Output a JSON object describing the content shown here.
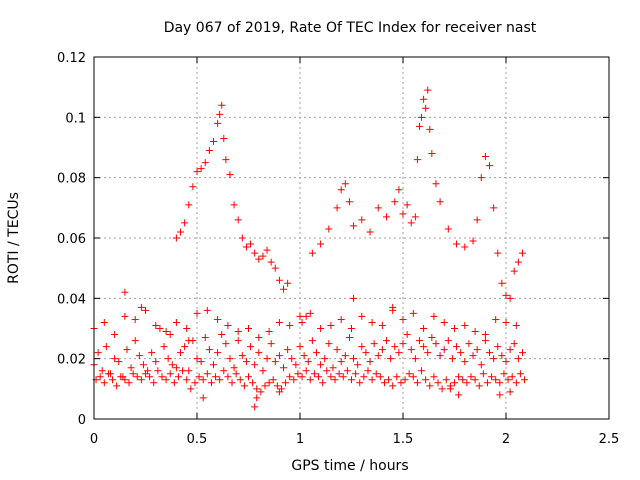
{
  "chart_data": {
    "type": "scatter",
    "title": "Day 067 of 2019, Rate Of TEC Index for receiver nast",
    "xlabel": "GPS time / hours",
    "ylabel": "ROTI / TECUs",
    "xlim": [
      0,
      2.5
    ],
    "ylim": [
      0,
      0.12
    ],
    "xticks": [
      0,
      0.5,
      1,
      1.5,
      2,
      2.5
    ],
    "xtick_labels": [
      "0",
      "0.5",
      "1",
      "1.5",
      "2",
      "2.5"
    ],
    "yticks": [
      0,
      0.02,
      0.04,
      0.06,
      0.08,
      0.1,
      0.12
    ],
    "ytick_labels": [
      "0",
      "0.02",
      "0.04",
      "0.06",
      "0.08",
      "0.1",
      "0.12"
    ],
    "grid": true,
    "marker": "+",
    "series_color": "#ff0000",
    "grid_color": "#a0a0a0",
    "series": [
      {
        "name": "ROTI",
        "x": [
          0.0,
          0.02,
          0.04,
          0.06,
          0.08,
          0.1,
          0.12,
          0.14,
          0.16,
          0.18,
          0.2,
          0.22,
          0.24,
          0.26,
          0.28,
          0.3,
          0.32,
          0.34,
          0.36,
          0.38,
          0.4,
          0.42,
          0.44,
          0.46,
          0.48,
          0.5,
          0.52,
          0.54,
          0.56,
          0.58,
          0.6,
          0.62,
          0.64,
          0.66,
          0.68,
          0.7,
          0.72,
          0.74,
          0.76,
          0.78,
          0.8,
          0.82,
          0.84,
          0.86,
          0.88,
          0.9,
          0.92,
          0.94,
          0.96,
          0.98,
          1.0,
          1.02,
          1.04,
          1.06,
          1.08,
          1.1,
          1.12,
          1.14,
          1.16,
          1.18,
          1.2,
          1.22,
          1.24,
          1.26,
          1.28,
          1.3,
          1.32,
          1.34,
          1.36,
          1.38,
          1.4,
          1.42,
          1.44,
          1.46,
          1.48,
          1.5,
          1.52,
          1.54,
          1.56,
          1.58,
          1.6,
          1.62,
          1.64,
          1.66,
          1.68,
          1.7,
          1.72,
          1.74,
          1.76,
          1.78,
          1.8,
          1.82,
          1.84,
          1.86,
          1.88,
          1.9,
          1.92,
          1.94,
          1.96,
          1.98,
          2.0,
          2.02,
          2.04,
          2.06,
          2.08,
          0.01,
          0.03,
          0.05,
          0.07,
          0.09,
          0.11,
          0.13,
          0.15,
          0.17,
          0.19,
          0.21,
          0.23,
          0.25,
          0.27,
          0.29,
          0.31,
          0.33,
          0.35,
          0.37,
          0.39,
          0.41,
          0.43,
          0.45,
          0.47,
          0.49,
          0.51,
          0.53,
          0.55,
          0.57,
          0.59,
          0.61,
          0.63,
          0.65,
          0.67,
          0.69,
          0.71,
          0.73,
          0.75,
          0.77,
          0.79,
          0.81,
          0.83,
          0.85,
          0.87,
          0.89,
          0.91,
          0.93,
          0.95,
          0.97,
          0.99,
          1.01,
          1.03,
          1.05,
          1.07,
          1.09,
          1.11,
          1.13,
          1.15,
          1.17,
          1.19,
          1.21,
          1.23,
          1.25,
          1.27,
          1.29,
          1.31,
          1.33,
          1.35,
          1.37,
          1.39,
          1.41,
          1.43,
          1.45,
          1.47,
          1.49,
          1.51,
          1.53,
          1.55,
          1.57,
          1.59,
          1.61,
          1.63,
          1.65,
          1.67,
          1.69,
          1.71,
          1.73,
          1.75,
          1.77,
          1.79,
          1.81,
          1.83,
          1.85,
          1.87,
          1.89,
          1.91,
          1.93,
          1.95,
          1.97,
          1.99,
          2.01,
          2.03,
          2.05,
          2.07,
          2.09,
          0.0,
          0.05,
          0.1,
          0.15,
          0.2,
          0.25,
          0.3,
          0.35,
          0.4,
          0.45,
          0.5,
          0.55,
          0.6,
          0.65,
          0.7,
          0.75,
          0.8,
          0.85,
          0.9,
          0.95,
          1.0,
          1.05,
          1.1,
          1.15,
          1.2,
          1.25,
          1.3,
          1.35,
          1.4,
          1.45,
          1.5,
          1.55,
          1.6,
          1.65,
          1.7,
          1.75,
          1.8,
          1.85,
          1.9,
          1.95,
          2.0,
          2.05,
          0.4,
          0.42,
          0.44,
          0.46,
          0.48,
          0.5,
          0.52,
          0.54,
          0.56,
          0.58,
          0.6,
          0.61,
          0.62,
          0.63,
          0.64,
          0.66,
          0.68,
          0.7,
          0.72,
          0.74,
          0.76,
          0.78,
          0.8,
          0.82,
          0.84,
          0.86,
          0.88,
          0.9,
          0.92,
          0.94,
          1.06,
          1.1,
          1.14,
          1.18,
          1.2,
          1.22,
          1.24,
          1.26,
          1.3,
          1.34,
          1.38,
          1.42,
          1.46,
          1.48,
          1.5,
          1.52,
          1.54,
          1.56,
          1.57,
          1.58,
          1.59,
          1.6,
          1.61,
          1.62,
          1.63,
          1.64,
          1.66,
          1.68,
          1.72,
          1.76,
          1.8,
          1.84,
          1.86,
          1.88,
          1.9,
          1.92,
          1.94,
          1.96,
          1.98,
          2.0,
          2.02,
          2.04,
          2.06,
          2.08,
          0.15,
          0.23,
          0.37,
          0.46,
          0.53,
          0.78,
          0.79,
          0.9,
          1.01,
          1.03,
          1.26,
          1.45,
          1.73,
          1.77,
          1.97,
          2.02
        ],
        "y": [
          0.018,
          0.022,
          0.016,
          0.024,
          0.015,
          0.02,
          0.019,
          0.014,
          0.023,
          0.017,
          0.026,
          0.021,
          0.018,
          0.016,
          0.022,
          0.019,
          0.03,
          0.024,
          0.02,
          0.018,
          0.017,
          0.022,
          0.024,
          0.016,
          0.026,
          0.02,
          0.019,
          0.027,
          0.023,
          0.018,
          0.022,
          0.028,
          0.025,
          0.02,
          0.017,
          0.026,
          0.021,
          0.019,
          0.024,
          0.018,
          0.022,
          0.016,
          0.02,
          0.025,
          0.019,
          0.021,
          0.017,
          0.023,
          0.02,
          0.018,
          0.024,
          0.021,
          0.019,
          0.026,
          0.022,
          0.018,
          0.02,
          0.025,
          0.017,
          0.023,
          0.019,
          0.021,
          0.027,
          0.02,
          0.018,
          0.024,
          0.022,
          0.019,
          0.025,
          0.021,
          0.023,
          0.026,
          0.02,
          0.024,
          0.022,
          0.025,
          0.028,
          0.023,
          0.02,
          0.026,
          0.024,
          0.022,
          0.027,
          0.025,
          0.021,
          0.023,
          0.026,
          0.02,
          0.024,
          0.022,
          0.019,
          0.025,
          0.021,
          0.023,
          0.018,
          0.026,
          0.022,
          0.02,
          0.024,
          0.021,
          0.019,
          0.023,
          0.025,
          0.02,
          0.022,
          0.013,
          0.014,
          0.012,
          0.015,
          0.013,
          0.011,
          0.014,
          0.013,
          0.012,
          0.015,
          0.014,
          0.013,
          0.015,
          0.014,
          0.012,
          0.016,
          0.014,
          0.013,
          0.015,
          0.012,
          0.014,
          0.016,
          0.013,
          0.01,
          0.012,
          0.014,
          0.013,
          0.015,
          0.012,
          0.014,
          0.013,
          0.016,
          0.014,
          0.012,
          0.015,
          0.013,
          0.011,
          0.014,
          0.012,
          0.01,
          0.009,
          0.011,
          0.012,
          0.013,
          0.011,
          0.01,
          0.012,
          0.014,
          0.013,
          0.015,
          0.014,
          0.016,
          0.013,
          0.015,
          0.014,
          0.012,
          0.016,
          0.014,
          0.013,
          0.015,
          0.014,
          0.016,
          0.013,
          0.015,
          0.012,
          0.014,
          0.016,
          0.013,
          0.015,
          0.014,
          0.012,
          0.013,
          0.011,
          0.014,
          0.012,
          0.013,
          0.015,
          0.014,
          0.012,
          0.016,
          0.013,
          0.011,
          0.014,
          0.012,
          0.01,
          0.013,
          0.011,
          0.012,
          0.014,
          0.013,
          0.012,
          0.014,
          0.013,
          0.011,
          0.015,
          0.012,
          0.014,
          0.013,
          0.012,
          0.015,
          0.013,
          0.014,
          0.012,
          0.015,
          0.013,
          0.03,
          0.032,
          0.028,
          0.034,
          0.033,
          0.036,
          0.031,
          0.029,
          0.032,
          0.03,
          0.035,
          0.036,
          0.033,
          0.031,
          0.029,
          0.03,
          0.027,
          0.029,
          0.032,
          0.031,
          0.034,
          0.035,
          0.03,
          0.031,
          0.033,
          0.03,
          0.034,
          0.032,
          0.031,
          0.036,
          0.033,
          0.035,
          0.03,
          0.034,
          0.032,
          0.03,
          0.031,
          0.029,
          0.028,
          0.033,
          0.032,
          0.031,
          0.06,
          0.062,
          0.065,
          0.071,
          0.077,
          0.082,
          0.083,
          0.085,
          0.089,
          0.092,
          0.098,
          0.101,
          0.104,
          0.093,
          0.086,
          0.081,
          0.071,
          0.066,
          0.06,
          0.057,
          0.058,
          0.055,
          0.053,
          0.054,
          0.056,
          0.052,
          0.05,
          0.046,
          0.043,
          0.045,
          0.055,
          0.058,
          0.063,
          0.07,
          0.076,
          0.078,
          0.072,
          0.064,
          0.066,
          0.062,
          0.07,
          0.067,
          0.072,
          0.076,
          0.068,
          0.071,
          0.065,
          0.067,
          0.086,
          0.097,
          0.1,
          0.106,
          0.103,
          0.109,
          0.096,
          0.088,
          0.078,
          0.072,
          0.063,
          0.058,
          0.057,
          0.059,
          0.066,
          0.08,
          0.087,
          0.084,
          0.07,
          0.055,
          0.045,
          0.041,
          0.04,
          0.049,
          0.052,
          0.055,
          0.042,
          0.037,
          0.028,
          0.026,
          0.007,
          0.004,
          0.007,
          0.009,
          0.032,
          0.034,
          0.04,
          0.037,
          0.01,
          0.008,
          0.008,
          0.009
        ]
      }
    ]
  }
}
